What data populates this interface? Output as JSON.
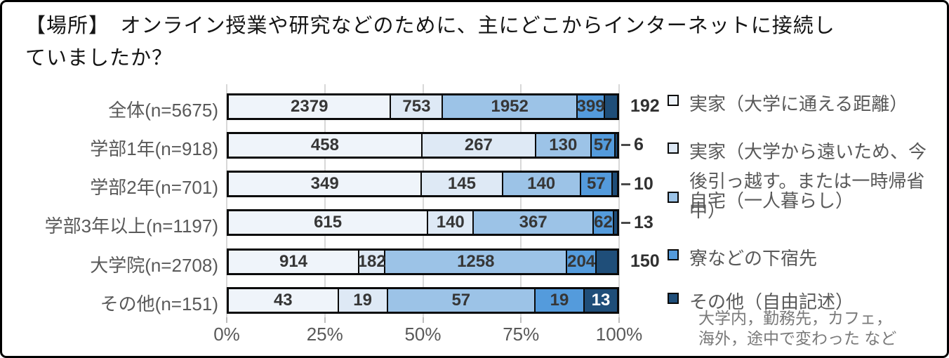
{
  "title_lines": [
    "【場所】　オンライン授業や研究などのために、主にどこからインターネットに接続し",
    "ていましたか？"
  ],
  "chart_data": {
    "type": "bar",
    "stacked": true,
    "orientation": "horizontal",
    "title": "【場所】 オンライン授業や研究などのために、主にどこからインターネットに接続していましたか？",
    "x_axis": {
      "ticks": [
        "0%",
        "25%",
        "50%",
        "75%",
        "100%"
      ],
      "range": [
        0,
        100
      ],
      "unit": "percent of row total",
      "gridlines": true
    },
    "series": [
      {
        "name": "実家（大学に通える距離）",
        "color": "#EFF4FA"
      },
      {
        "name": "実家（大学から遠いため、今後引っ越す。または一時帰省中）",
        "color": "#DEE9F5"
      },
      {
        "name": "自宅（一人暮らし）",
        "color": "#9CC3E7"
      },
      {
        "name": "寮などの下宿先",
        "color": "#549BDC"
      },
      {
        "name": "その他（自由記述）",
        "color": "#1F4E79"
      }
    ],
    "legend_note_lines": [
      "大学内，勤務先，カフェ，",
      "海外，途中で変わった など"
    ],
    "rows": [
      {
        "label": "全体(n=5675)",
        "total": 5675,
        "values": [
          2379,
          753,
          1952,
          399,
          192
        ],
        "last_label_outside": true,
        "leader_dash": false
      },
      {
        "label": "学部1年(n=918)",
        "total": 918,
        "values": [
          458,
          267,
          130,
          57,
          6
        ],
        "last_label_outside": true,
        "leader_dash": true
      },
      {
        "label": "学部2年(n=701)",
        "total": 701,
        "values": [
          349,
          145,
          140,
          57,
          10
        ],
        "last_label_outside": true,
        "leader_dash": true
      },
      {
        "label": "学部3年以上(n=1197)",
        "total": 1197,
        "values": [
          615,
          140,
          367,
          62,
          13
        ],
        "last_label_outside": true,
        "leader_dash": true
      },
      {
        "label": "大学院(n=2708)",
        "total": 2708,
        "values": [
          914,
          182,
          1258,
          204,
          150
        ],
        "last_label_outside": true,
        "leader_dash": false
      },
      {
        "label": "その他(n=151)",
        "total": 151,
        "values": [
          43,
          19,
          57,
          19,
          13
        ],
        "last_label_outside": false,
        "leader_dash": false
      }
    ]
  }
}
